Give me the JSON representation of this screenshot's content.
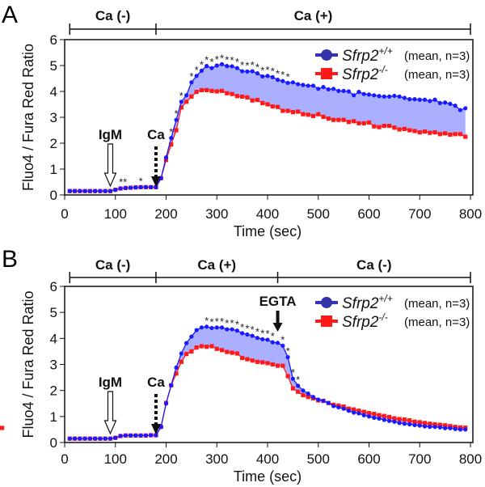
{
  "chart_data": [
    {
      "panel": "A",
      "type": "line",
      "xlabel": "Time (sec)",
      "ylabel": "Fluo4 / Fura Red Ratio",
      "xlim": [
        0,
        800
      ],
      "ylim": [
        0,
        6
      ],
      "xticks": [
        "0",
        "100",
        "200",
        "300",
        "400",
        "500",
        "600",
        "700",
        "800"
      ],
      "yticks": [
        "0",
        "1",
        "2",
        "3",
        "4",
        "5",
        "6"
      ],
      "phases": [
        {
          "label": "Ca (-)",
          "from": 10,
          "to": 180
        },
        {
          "label": "Ca (+)",
          "from": 180,
          "to": 800
        }
      ],
      "annotations": [
        {
          "label": "IgM",
          "x": 90,
          "arrow": "hollow"
        },
        {
          "label": "Ca",
          "x": 180,
          "arrow": "dotted"
        }
      ],
      "asterisks": [
        {
          "x": 115,
          "text": "**"
        },
        {
          "x": 150,
          "text": "*"
        },
        {
          "x": 210,
          "text": "*"
        },
        {
          "x": 220,
          "text": "*"
        },
        {
          "x": 230,
          "text": "*"
        },
        {
          "x": 250,
          "text": "*"
        },
        {
          "x": 260,
          "text": "*"
        },
        {
          "x": 270,
          "text": "*"
        },
        {
          "x": 280,
          "text": "*"
        },
        {
          "x": 290,
          "text": "*"
        },
        {
          "x": 300,
          "text": "*"
        },
        {
          "x": 310,
          "text": "*"
        },
        {
          "x": 320,
          "text": "*"
        },
        {
          "x": 330,
          "text": "*"
        },
        {
          "x": 340,
          "text": "*"
        },
        {
          "x": 350,
          "text": "*"
        },
        {
          "x": 360,
          "text": "*"
        },
        {
          "x": 370,
          "text": "*"
        },
        {
          "x": 380,
          "text": "*"
        },
        {
          "x": 390,
          "text": "*"
        },
        {
          "x": 400,
          "text": "*"
        },
        {
          "x": 410,
          "text": "*"
        },
        {
          "x": 420,
          "text": "*"
        },
        {
          "x": 430,
          "text": "*"
        },
        {
          "x": 440,
          "text": "*"
        }
      ],
      "series": [
        {
          "name": "Sfrp2",
          "sup": "+/+",
          "note": "(mean, n=3)",
          "color": "#1a1aff",
          "marker": "circle",
          "values": [
            0.15,
            0.15,
            0.15,
            0.15,
            0.15,
            0.15,
            0.15,
            0.15,
            0.15,
            0.2,
            0.25,
            0.27,
            0.28,
            0.29,
            0.3,
            0.3,
            0.3,
            0.3,
            0.65,
            1.45,
            2.2,
            2.9,
            3.6,
            3.85,
            4.35,
            4.6,
            4.8,
            4.98,
            4.9,
            5.0,
            5.05,
            4.98,
            4.97,
            4.9,
            4.78,
            4.77,
            4.78,
            4.7,
            4.58,
            4.6,
            4.55,
            4.45,
            4.4,
            4.33,
            4.35,
            4.28,
            4.25,
            4.22,
            4.22,
            4.1,
            4.17,
            4.08,
            4.1,
            4.02,
            4.02,
            4.0,
            3.85,
            3.98,
            3.9,
            3.88,
            3.85,
            3.82,
            3.8,
            3.8,
            3.83,
            3.8,
            3.75,
            3.7,
            3.7,
            3.68,
            3.68,
            3.63,
            3.68,
            3.55,
            3.57,
            3.52,
            3.45,
            3.28,
            3.35
          ]
        },
        {
          "name": "Sfrp2",
          "sup": "-/-",
          "note": "(mean, n=3)",
          "color": "#ff1a1a",
          "marker": "square",
          "values": [
            0.15,
            0.15,
            0.15,
            0.15,
            0.15,
            0.15,
            0.15,
            0.15,
            0.15,
            0.2,
            0.25,
            0.27,
            0.28,
            0.29,
            0.3,
            0.3,
            0.3,
            0.3,
            0.65,
            1.35,
            1.95,
            2.5,
            3.38,
            3.6,
            3.8,
            3.98,
            4.05,
            4.05,
            4.02,
            4.0,
            4.02,
            3.93,
            3.9,
            3.82,
            3.8,
            3.77,
            3.65,
            3.67,
            3.55,
            3.5,
            3.42,
            3.4,
            3.25,
            3.25,
            3.2,
            3.22,
            3.12,
            3.1,
            3.05,
            3.12,
            3.02,
            2.95,
            2.9,
            2.9,
            2.9,
            2.82,
            2.85,
            2.77,
            2.77,
            2.8,
            2.65,
            2.62,
            2.67,
            2.67,
            2.6,
            2.53,
            2.55,
            2.5,
            2.47,
            2.42,
            2.45,
            2.4,
            2.42,
            2.35,
            2.38,
            2.33,
            2.35,
            2.35,
            2.25
          ]
        }
      ]
    },
    {
      "panel": "B",
      "type": "line",
      "xlabel": "Time (sec)",
      "ylabel": "Fluo4 / Fura Red Ratio",
      "xlim": [
        0,
        800
      ],
      "ylim": [
        0,
        6
      ],
      "xticks": [
        "0",
        "100",
        "200",
        "300",
        "400",
        "500",
        "600",
        "700",
        "800"
      ],
      "yticks": [
        "0",
        "1",
        "2",
        "3",
        "4",
        "5",
        "6"
      ],
      "phases": [
        {
          "label": "Ca (-)",
          "from": 10,
          "to": 180
        },
        {
          "label": "Ca (+)",
          "from": 180,
          "to": 420
        },
        {
          "label": "Ca (-)",
          "from": 420,
          "to": 800
        }
      ],
      "annotations": [
        {
          "label": "IgM",
          "x": 90,
          "arrow": "hollow"
        },
        {
          "label": "Ca",
          "x": 180,
          "arrow": "dotted"
        },
        {
          "label": "EGTA",
          "x": 420,
          "arrow": "solid"
        }
      ],
      "asterisks": [
        {
          "x": 280,
          "text": "*"
        },
        {
          "x": 290,
          "text": "*"
        },
        {
          "x": 300,
          "text": "*"
        },
        {
          "x": 310,
          "text": "*"
        },
        {
          "x": 320,
          "text": "*"
        },
        {
          "x": 330,
          "text": "*"
        },
        {
          "x": 340,
          "text": "*"
        },
        {
          "x": 350,
          "text": "*"
        },
        {
          "x": 360,
          "text": "*"
        },
        {
          "x": 370,
          "text": "*"
        },
        {
          "x": 380,
          "text": "*"
        },
        {
          "x": 390,
          "text": "*"
        },
        {
          "x": 400,
          "text": "*"
        },
        {
          "x": 410,
          "text": "*"
        },
        {
          "x": 430,
          "text": "*"
        },
        {
          "x": 440,
          "text": "*"
        },
        {
          "x": 450,
          "text": "*"
        },
        {
          "x": 460,
          "text": "*"
        }
      ],
      "series": [
        {
          "name": "Sfrp2",
          "sup": "+/+",
          "note": "(mean, n=3)",
          "color": "#1a1aff",
          "marker": "circle",
          "values": [
            0.15,
            0.15,
            0.15,
            0.15,
            0.15,
            0.15,
            0.15,
            0.15,
            0.15,
            0.18,
            0.25,
            0.27,
            0.27,
            0.27,
            0.27,
            0.27,
            0.28,
            0.28,
            0.6,
            1.5,
            2.2,
            2.88,
            3.42,
            3.82,
            4.07,
            4.32,
            4.42,
            4.45,
            4.4,
            4.42,
            4.42,
            4.35,
            4.35,
            4.3,
            4.2,
            4.15,
            4.1,
            4.02,
            3.97,
            3.95,
            3.85,
            3.83,
            3.72,
            3.28,
            2.45,
            2.18,
            2.0,
            1.88,
            1.75,
            1.65,
            1.6,
            1.52,
            1.4,
            1.35,
            1.3,
            1.22,
            1.15,
            1.12,
            1.05,
            1.0,
            0.95,
            0.92,
            0.87,
            0.83,
            0.8,
            0.75,
            0.72,
            0.7,
            0.67,
            0.65,
            0.62,
            0.6,
            0.6,
            0.58,
            0.55,
            0.55,
            0.52,
            0.5,
            0.5
          ]
        },
        {
          "name": "Sfrp2",
          "sup": "-/-",
          "note": "(mean, n=3)",
          "color": "#ff1a1a",
          "marker": "square",
          "values": [
            0.15,
            0.15,
            0.15,
            0.15,
            0.15,
            0.15,
            0.15,
            0.15,
            0.15,
            0.18,
            0.25,
            0.27,
            0.27,
            0.27,
            0.27,
            0.27,
            0.28,
            0.28,
            0.6,
            1.52,
            2.2,
            2.65,
            3.1,
            3.4,
            3.5,
            3.65,
            3.7,
            3.68,
            3.7,
            3.6,
            3.55,
            3.48,
            3.45,
            3.42,
            3.25,
            3.2,
            3.15,
            3.1,
            3.08,
            3.05,
            3.0,
            2.95,
            2.95,
            2.55,
            2.08,
            1.95,
            1.82,
            1.75,
            1.7,
            1.62,
            1.6,
            1.52,
            1.45,
            1.42,
            1.38,
            1.3,
            1.27,
            1.22,
            1.18,
            1.13,
            1.1,
            1.05,
            1.02,
            0.98,
            0.93,
            0.9,
            0.88,
            0.85,
            0.8,
            0.78,
            0.75,
            0.72,
            0.7,
            0.68,
            0.66,
            0.63,
            0.6,
            0.58,
            0.57,
            0.56
          ]
        }
      ]
    }
  ],
  "x_start": 10,
  "x_step": 10,
  "fill_color": "#aab0ff"
}
